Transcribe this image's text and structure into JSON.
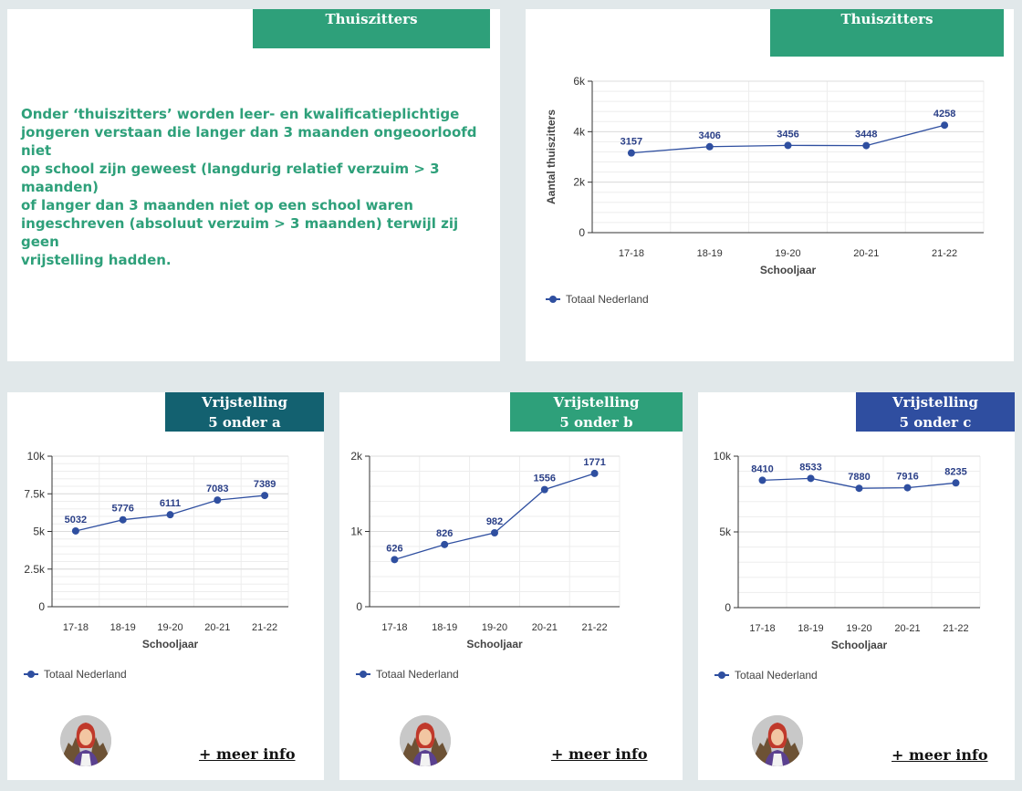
{
  "intro": {
    "title": "Thuiszitters",
    "lines": [
      "Onder ‘thuiszitters’ worden leer- en kwalificatieplichtige",
      "jongeren verstaan die langer dan 3 maanden ongeoorloofd niet",
      "op school zijn geweest (langdurig relatief verzuim > 3",
      "maanden)",
      "of langer dan 3 maanden niet op een school waren",
      "ingeschreven (absoluut verzuim > 3 maanden) terwijl zij geen",
      "vrijstelling hadden."
    ],
    "accent": "#2ea07a"
  },
  "cards": {
    "thuiszitters": {
      "title": "Thuiszitters",
      "tab_color": "#2ea07a",
      "legend": "Totaal Nederland"
    },
    "a": {
      "title_line1": "Vrijstelling",
      "title_line2": "5 onder a",
      "tab_color": "#136170",
      "legend": "Totaal Nederland",
      "link": "+ meer info",
      "avatar_icon": "woman-avatar-icon"
    },
    "b": {
      "title_line1": "Vrijstelling",
      "title_line2": "5 onder b",
      "tab_color": "#2ea07a",
      "legend": "Totaal Nederland",
      "link": "+ meer info",
      "avatar_icon": "woman-avatar-icon"
    },
    "c": {
      "title_line1": "Vrijstelling",
      "title_line2": "5 onder c",
      "tab_color": "#2f4ea0",
      "legend": "Totaal Nederland",
      "link": "+ meer info",
      "avatar_icon": "woman-avatar-icon"
    }
  },
  "chart_data": [
    {
      "id": "thuiszitters",
      "type": "line",
      "categories": [
        "17-18",
        "18-19",
        "19-20",
        "20-21",
        "21-22"
      ],
      "series": [
        {
          "name": "Totaal Nederland",
          "values": [
            3157,
            3406,
            3456,
            3448,
            4258
          ],
          "color": "#2f4fa0"
        }
      ],
      "xlabel": "Schooljaar",
      "ylabel": "Aantal thuiszitters",
      "ylim": [
        0,
        6000
      ],
      "yticks": [
        0,
        2000,
        4000,
        6000
      ],
      "ytick_labels": [
        "0",
        "2k",
        "4k",
        "6k"
      ],
      "grid": true,
      "legend_position": "bottom-left"
    },
    {
      "id": "a",
      "type": "line",
      "categories": [
        "17-18",
        "18-19",
        "19-20",
        "20-21",
        "21-22"
      ],
      "series": [
        {
          "name": "Totaal Nederland",
          "values": [
            5032,
            5776,
            6111,
            7083,
            7389
          ],
          "color": "#2f4fa0"
        }
      ],
      "xlabel": "Schooljaar",
      "ylabel": "",
      "ylim": [
        0,
        10000
      ],
      "yticks": [
        0,
        2500,
        5000,
        7500,
        10000
      ],
      "ytick_labels": [
        "0",
        "2.5k",
        "5k",
        "7.5k",
        "10k"
      ],
      "grid": true,
      "legend_position": "bottom-left"
    },
    {
      "id": "b",
      "type": "line",
      "categories": [
        "17-18",
        "18-19",
        "19-20",
        "20-21",
        "21-22"
      ],
      "series": [
        {
          "name": "Totaal Nederland",
          "values": [
            626,
            826,
            982,
            1556,
            1771
          ],
          "color": "#2f4fa0"
        }
      ],
      "xlabel": "Schooljaar",
      "ylabel": "",
      "ylim": [
        0,
        2000
      ],
      "yticks": [
        0,
        1000,
        2000
      ],
      "ytick_labels": [
        "0",
        "1k",
        "2k"
      ],
      "grid": true,
      "legend_position": "bottom-left"
    },
    {
      "id": "c",
      "type": "line",
      "categories": [
        "17-18",
        "18-19",
        "19-20",
        "20-21",
        "21-22"
      ],
      "series": [
        {
          "name": "Totaal Nederland",
          "values": [
            8410,
            8533,
            7880,
            7916,
            8235
          ],
          "color": "#2f4fa0"
        }
      ],
      "xlabel": "Schooljaar",
      "ylabel": "",
      "ylim": [
        0,
        10000
      ],
      "yticks": [
        0,
        5000,
        10000
      ],
      "ytick_labels": [
        "0",
        "5k",
        "10k"
      ],
      "grid": true,
      "legend_position": "bottom-left"
    }
  ]
}
